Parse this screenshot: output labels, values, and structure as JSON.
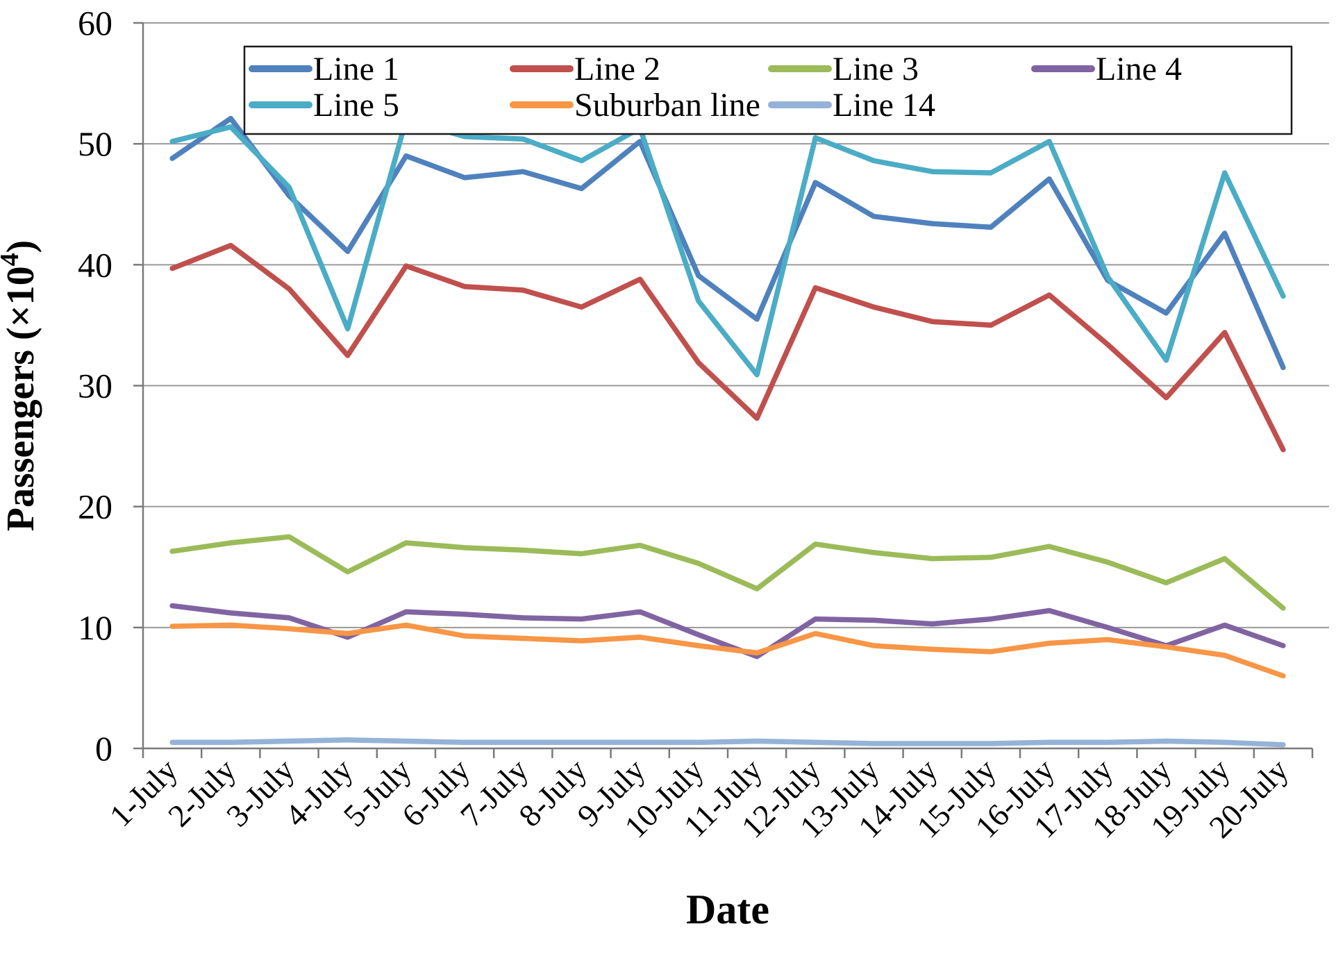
{
  "page": {
    "background": "#ffffff",
    "grid_color": "#9a9a9a",
    "axis_color": "#7a7a7a",
    "text_color": "#000000"
  },
  "chart_data": {
    "type": "line",
    "title": "",
    "xlabel": "Date",
    "ylabel": "Passengers (×10⁴)",
    "ylabel_parts": {
      "prefix": "Passengers (×10",
      "superscript": "4",
      "suffix": ")"
    },
    "ylim": [
      0,
      60
    ],
    "yticks": [
      0,
      10,
      20,
      30,
      40,
      50,
      60
    ],
    "grid": true,
    "legend_position": "top",
    "x_categories": [
      "1-July",
      "2-July",
      "3-July",
      "4-July",
      "5-July",
      "6-July",
      "7-July",
      "8-July",
      "9-July",
      "10-July",
      "11-July",
      "12-July",
      "13-July",
      "14-July",
      "15-July",
      "16-July",
      "17-July",
      "18-July",
      "19-July",
      "20-July"
    ],
    "series": [
      {
        "name": "Line 1",
        "color": "#4F81BD",
        "values": [
          48.8,
          52.1,
          45.7,
          41.1,
          49.0,
          47.2,
          47.7,
          46.3,
          50.2,
          39.1,
          35.5,
          46.8,
          44.0,
          43.4,
          43.1,
          47.1,
          38.7,
          36.0,
          42.6,
          31.5
        ]
      },
      {
        "name": "Line 2",
        "color": "#C0504D",
        "values": [
          39.7,
          41.6,
          38.0,
          32.5,
          39.9,
          38.2,
          37.9,
          36.5,
          38.8,
          31.9,
          27.3,
          38.1,
          36.5,
          35.3,
          35.0,
          37.5,
          33.4,
          29.0,
          34.4,
          24.7
        ]
      },
      {
        "name": "Line 3",
        "color": "#9BBB59",
        "values": [
          16.3,
          17.0,
          17.5,
          14.6,
          17.0,
          16.6,
          16.4,
          16.1,
          16.8,
          15.3,
          13.2,
          16.9,
          16.2,
          15.7,
          15.8,
          16.7,
          15.4,
          13.7,
          15.7,
          11.6
        ]
      },
      {
        "name": "Line 4",
        "color": "#8064A2",
        "values": [
          11.8,
          11.2,
          10.8,
          9.2,
          11.3,
          11.1,
          10.8,
          10.7,
          11.3,
          9.4,
          7.6,
          10.7,
          10.6,
          10.3,
          10.7,
          11.4,
          10.0,
          8.5,
          10.2,
          8.5
        ]
      },
      {
        "name": "Line 5",
        "color": "#4BACC6",
        "values": [
          50.2,
          51.4,
          46.4,
          34.7,
          52.0,
          50.6,
          50.4,
          48.6,
          51.3,
          37.0,
          30.9,
          50.5,
          48.6,
          47.7,
          47.6,
          50.2,
          39.0,
          32.1,
          47.6,
          37.4
        ]
      },
      {
        "name": "Suburban line",
        "color": "#F79646",
        "values": [
          10.1,
          10.2,
          9.9,
          9.5,
          10.2,
          9.3,
          9.1,
          8.9,
          9.2,
          8.5,
          7.9,
          9.5,
          8.5,
          8.2,
          8.0,
          8.7,
          9.0,
          8.4,
          7.7,
          6.0
        ]
      },
      {
        "name": "Line 14",
        "color": "#95B3D7",
        "values": [
          0.5,
          0.5,
          0.6,
          0.7,
          0.6,
          0.5,
          0.5,
          0.5,
          0.5,
          0.5,
          0.6,
          0.5,
          0.4,
          0.4,
          0.4,
          0.5,
          0.5,
          0.6,
          0.5,
          0.3
        ]
      }
    ],
    "legend_rows": [
      [
        "Line 1",
        "Line 2",
        "Line 3",
        "Line 4"
      ],
      [
        "Line 5",
        "Suburban line",
        "Line 14"
      ]
    ]
  }
}
